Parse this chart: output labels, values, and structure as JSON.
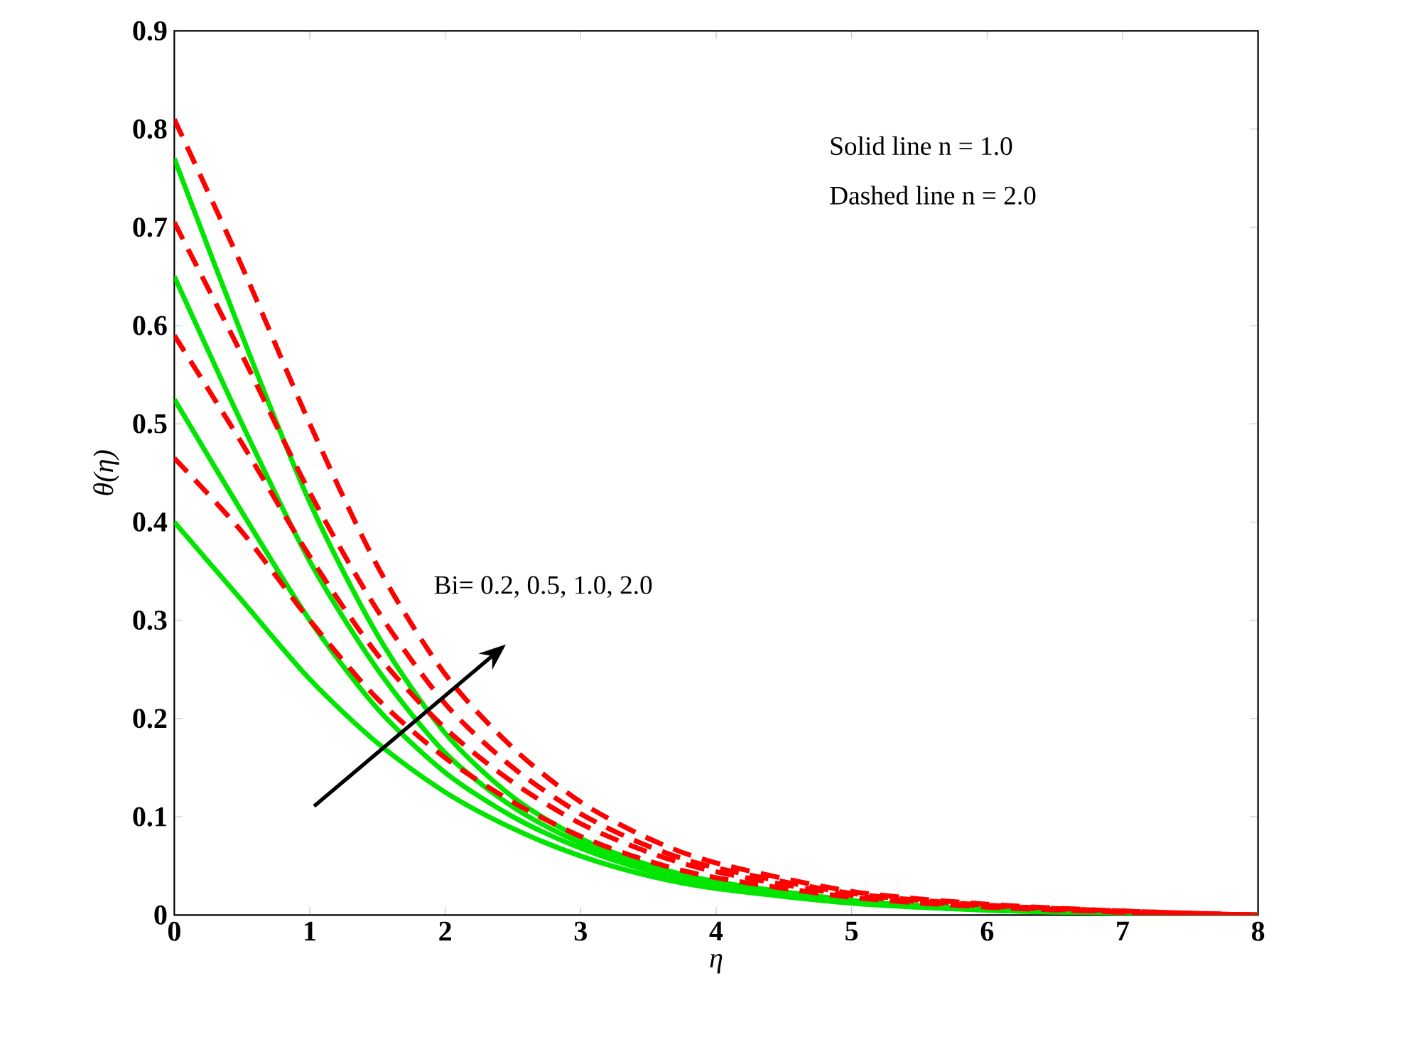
{
  "chart_data": {
    "type": "line",
    "xlabel": "η",
    "ylabel": "θ(η)",
    "x": [
      0,
      0.5,
      1,
      1.5,
      2,
      2.5,
      3,
      3.5,
      4,
      5,
      6,
      7,
      8
    ],
    "series": [
      {
        "color": "#00e600",
        "line_style": "solid",
        "values": [
          0.4,
          0.32,
          0.24,
          0.175,
          0.125,
          0.088,
          0.06,
          0.04,
          0.027,
          0.012,
          0.005,
          0.002,
          0
        ]
      },
      {
        "color": "#00e600",
        "line_style": "solid",
        "values": [
          0.525,
          0.41,
          0.3,
          0.21,
          0.145,
          0.1,
          0.068,
          0.045,
          0.03,
          0.013,
          0.005,
          0.002,
          0
        ]
      },
      {
        "color": "#00e600",
        "line_style": "solid",
        "values": [
          0.65,
          0.5,
          0.36,
          0.25,
          0.165,
          0.11,
          0.073,
          0.048,
          0.032,
          0.014,
          0.006,
          0.002,
          0
        ]
      },
      {
        "color": "#00e600",
        "line_style": "solid",
        "values": [
          0.77,
          0.59,
          0.42,
          0.285,
          0.185,
          0.12,
          0.078,
          0.051,
          0.034,
          0.015,
          0.006,
          0.002,
          0
        ]
      },
      {
        "color": "#ff0000",
        "line_style": "dashed",
        "values": [
          0.465,
          0.39,
          0.3,
          0.22,
          0.16,
          0.115,
          0.08,
          0.055,
          0.038,
          0.018,
          0.008,
          0.003,
          0
        ]
      },
      {
        "color": "#ff0000",
        "line_style": "dashed",
        "values": [
          0.59,
          0.48,
          0.365,
          0.265,
          0.19,
          0.135,
          0.093,
          0.064,
          0.044,
          0.02,
          0.009,
          0.003,
          0
        ]
      },
      {
        "color": "#ff0000",
        "line_style": "dashed",
        "values": [
          0.705,
          0.57,
          0.43,
          0.31,
          0.215,
          0.15,
          0.103,
          0.07,
          0.048,
          0.022,
          0.01,
          0.004,
          0
        ]
      },
      {
        "color": "#ff0000",
        "line_style": "dashed",
        "values": [
          0.81,
          0.66,
          0.5,
          0.355,
          0.245,
          0.17,
          0.115,
          0.078,
          0.053,
          0.024,
          0.011,
          0.004,
          0
        ]
      }
    ],
    "xlim": [
      0,
      8
    ],
    "ylim": [
      0,
      0.9
    ],
    "xticks": [
      0,
      1,
      2,
      3,
      4,
      5,
      6,
      7,
      8
    ],
    "yticks": [
      0,
      0.1,
      0.2,
      0.3,
      0.4,
      0.5,
      0.6,
      0.7,
      0.8,
      0.9
    ],
    "grid": false,
    "annotations": [
      "Solid line    n = 1.0",
      "Dashed line n = 2.0",
      "Bi= 0.2, 0.5, 1.0, 2.0"
    ]
  }
}
